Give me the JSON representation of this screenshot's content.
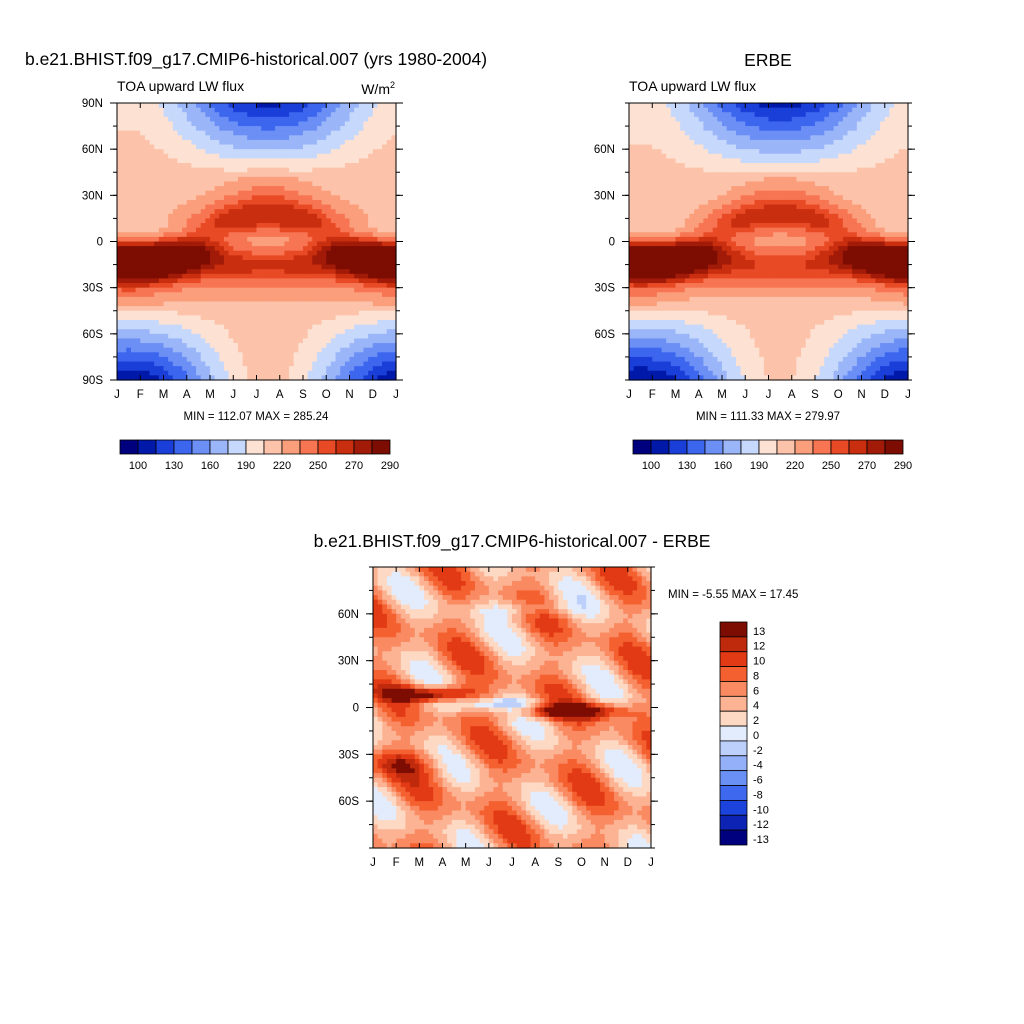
{
  "chart_data": [
    {
      "type": "heatmap",
      "title": "b.e21.BHIST.f09_g17.CMIP6-historical.007 (yrs 1980-2004)",
      "subtitle_left": "TOA upward LW flux",
      "units": "W/m",
      "units_sup": "2",
      "x_tick_labels": [
        "J",
        "F",
        "M",
        "A",
        "M",
        "J",
        "J",
        "A",
        "S",
        "O",
        "N",
        "D",
        "J"
      ],
      "y_tick_labels": [
        "90N",
        "60N",
        "30N",
        "0",
        "30S",
        "60S",
        "90S"
      ],
      "y_tick_lats": [
        90,
        60,
        30,
        0,
        -30,
        -60,
        -90
      ],
      "ylim": [
        -90,
        90
      ],
      "stats": "MIN = 112.07 MAX = 285.24",
      "colorbar": {
        "orientation": "horizontal",
        "labels": [
          "100",
          "130",
          "160",
          "190",
          "220",
          "250",
          "270",
          "290"
        ],
        "colors": [
          "#00007f",
          "#0019a8",
          "#1a3fd8",
          "#3d66ef",
          "#6b8ff5",
          "#9bb6f8",
          "#c6d8fb",
          "#fde2d4",
          "#fcc3aa",
          "#fb9e7c",
          "#f77552",
          "#e94a26",
          "#c92e0f",
          "#a11b08",
          "#7d0d02"
        ]
      }
    },
    {
      "type": "heatmap",
      "title": "ERBE",
      "subtitle_left": "TOA upward LW flux",
      "x_tick_labels": [
        "J",
        "F",
        "M",
        "A",
        "M",
        "J",
        "J",
        "A",
        "S",
        "O",
        "N",
        "D",
        "J"
      ],
      "y_tick_labels": [
        "60N",
        "30N",
        "0",
        "30S",
        "60S"
      ],
      "y_tick_lats": [
        60,
        30,
        0,
        -30,
        -60
      ],
      "ylim": [
        -90,
        90
      ],
      "stats": "MIN = 111.33 MAX = 279.97",
      "colorbar": {
        "orientation": "horizontal",
        "labels": [
          "100",
          "130",
          "160",
          "190",
          "220",
          "250",
          "270",
          "290"
        ],
        "colors": [
          "#00007f",
          "#0019a8",
          "#1a3fd8",
          "#3d66ef",
          "#6b8ff5",
          "#9bb6f8",
          "#c6d8fb",
          "#fde2d4",
          "#fcc3aa",
          "#fb9e7c",
          "#f77552",
          "#e94a26",
          "#c92e0f",
          "#a11b08",
          "#7d0d02"
        ]
      }
    },
    {
      "type": "heatmap",
      "title": "b.e21.BHIST.f09_g17.CMIP6-historical.007 - ERBE",
      "x_tick_labels": [
        "J",
        "F",
        "M",
        "A",
        "M",
        "J",
        "J",
        "A",
        "S",
        "O",
        "N",
        "D",
        "J"
      ],
      "y_tick_labels": [
        "60N",
        "30N",
        "0",
        "30S",
        "60S"
      ],
      "y_tick_lats": [
        60,
        30,
        0,
        -30,
        -60
      ],
      "ylim": [
        -90,
        90
      ],
      "stats": "MIN =  -5.55 MAX =  17.45",
      "colorbar": {
        "orientation": "vertical",
        "labels": [
          "13",
          "12",
          "10",
          "8",
          "6",
          "4",
          "2",
          "0",
          "-2",
          "-4",
          "-6",
          "-8",
          "-10",
          "-12",
          "-13"
        ],
        "colors": [
          "#7d0d02",
          "#c02a0c",
          "#e13a15",
          "#f4602f",
          "#f98a62",
          "#fcb393",
          "#fdd9c4",
          "#e3ecfd",
          "#bcd0fb",
          "#93b0f8",
          "#6a8ff5",
          "#3e69ef",
          "#1c44dc",
          "#0c23b4",
          "#00007f"
        ]
      }
    }
  ]
}
